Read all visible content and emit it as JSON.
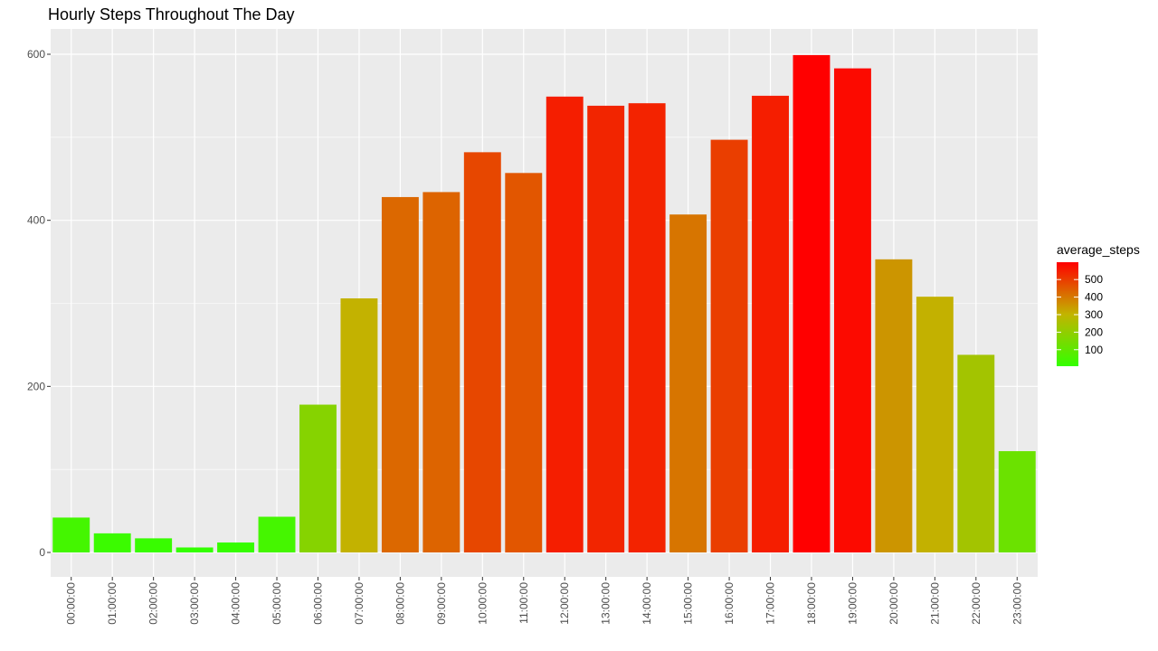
{
  "chart_data": {
    "type": "bar",
    "title": "Hourly Steps Throughout The Day",
    "xlabel": "",
    "ylabel": "",
    "categories": [
      "00:00:00",
      "01:00:00",
      "02:00:00",
      "03:00:00",
      "04:00:00",
      "05:00:00",
      "06:00:00",
      "07:00:00",
      "08:00:00",
      "09:00:00",
      "10:00:00",
      "11:00:00",
      "12:00:00",
      "13:00:00",
      "14:00:00",
      "15:00:00",
      "16:00:00",
      "17:00:00",
      "18:00:00",
      "19:00:00",
      "20:00:00",
      "21:00:00",
      "22:00:00",
      "23:00:00"
    ],
    "values": [
      42,
      23,
      17,
      6,
      12,
      43,
      178,
      306,
      428,
      434,
      482,
      457,
      549,
      538,
      541,
      407,
      497,
      550,
      599,
      583,
      353,
      308,
      238,
      122
    ],
    "ylim": [
      0,
      630
    ],
    "yticks": [
      0,
      200,
      400,
      600
    ],
    "grid": true,
    "fill_scale": {
      "low": "#33ff00",
      "mid": "#c2b400",
      "high": "#ff0000",
      "min": 6,
      "max": 599
    },
    "legend": {
      "title": "average_steps",
      "position": "right",
      "labels": [
        "500",
        "400",
        "300",
        "200",
        "100"
      ],
      "label_values": [
        500,
        400,
        300,
        200,
        100
      ]
    },
    "colors": {
      "panel": "#ebebeb",
      "grid_major": "#ffffff",
      "tick_text": "#4d4d4d"
    }
  }
}
